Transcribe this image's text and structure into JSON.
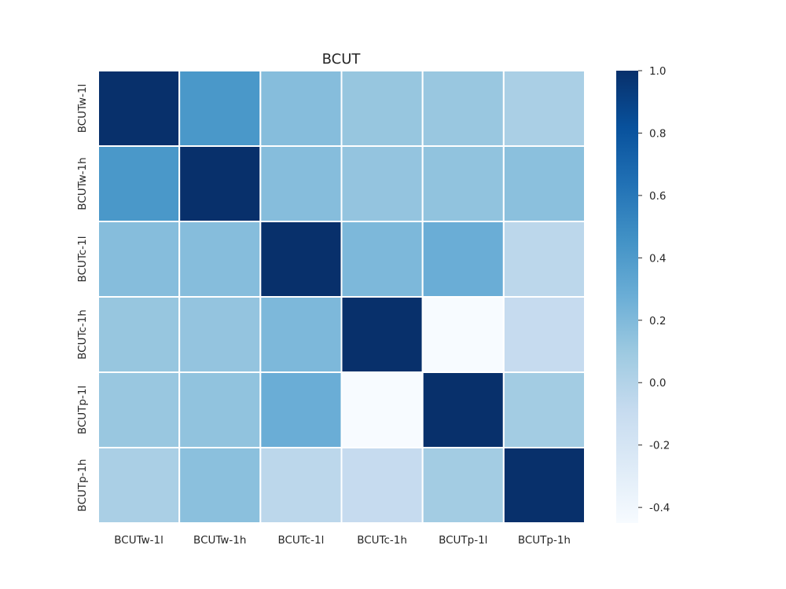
{
  "chart_data": {
    "type": "heatmap",
    "title": "BCUT",
    "xlabel": "",
    "ylabel": "",
    "x_categories": [
      "BCUTw-1l",
      "BCUTw-1h",
      "BCUTc-1l",
      "BCUTc-1h",
      "BCUTp-1l",
      "BCUTp-1h"
    ],
    "y_categories": [
      "BCUTw-1l",
      "BCUTw-1h",
      "BCUTc-1l",
      "BCUTc-1h",
      "BCUTp-1l",
      "BCUTp-1h"
    ],
    "values": [
      [
        1.0,
        0.42,
        0.18,
        0.12,
        0.11,
        0.04
      ],
      [
        0.42,
        1.0,
        0.18,
        0.13,
        0.14,
        0.16
      ],
      [
        0.18,
        0.18,
        1.0,
        0.21,
        0.28,
        -0.04
      ],
      [
        0.12,
        0.13,
        0.21,
        1.0,
        -0.45,
        -0.09
      ],
      [
        0.11,
        0.14,
        0.28,
        -0.45,
        1.0,
        0.07
      ],
      [
        0.04,
        0.16,
        -0.04,
        -0.09,
        0.07,
        1.0
      ]
    ],
    "colormap": "Blues",
    "vmin": -0.45,
    "vmax": 1.0,
    "colorbar_ticks": [
      "1.0",
      "0.8",
      "0.6",
      "0.4",
      "0.2",
      "0.0",
      "-0.2",
      "-0.4"
    ],
    "colorbar_tick_values": [
      1.0,
      0.8,
      0.6,
      0.4,
      0.2,
      0.0,
      -0.2,
      -0.4
    ],
    "cell_border_color": "#ffffff",
    "colorbar_position": "right"
  }
}
